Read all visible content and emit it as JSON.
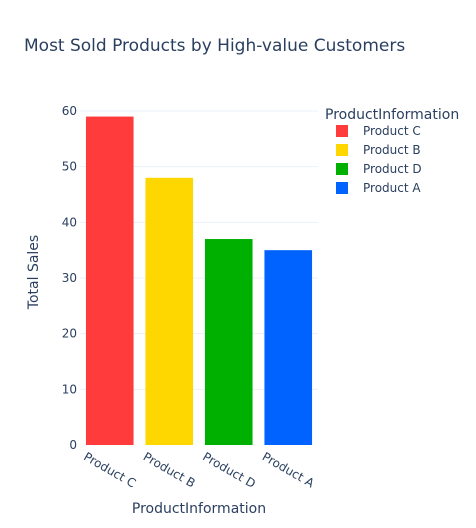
{
  "chart_data": {
    "type": "bar",
    "title": "Most Sold Products by High-value Customers",
    "xlabel": "ProductInformation",
    "ylabel": "Total Sales",
    "categories": [
      "Product C",
      "Product B",
      "Product D",
      "Product A"
    ],
    "values": [
      59,
      48,
      37,
      35
    ],
    "colors": [
      "#ff3b3b",
      "#ffd700",
      "#00b000",
      "#0062ff"
    ],
    "ylim": [
      0,
      60
    ],
    "yticks": [
      0,
      10,
      20,
      30,
      40,
      50,
      60
    ],
    "grid": true,
    "legend": {
      "title": "ProductInformation",
      "placement": "right",
      "entries": [
        "Product C",
        "Product B",
        "Product D",
        "Product A"
      ]
    }
  }
}
